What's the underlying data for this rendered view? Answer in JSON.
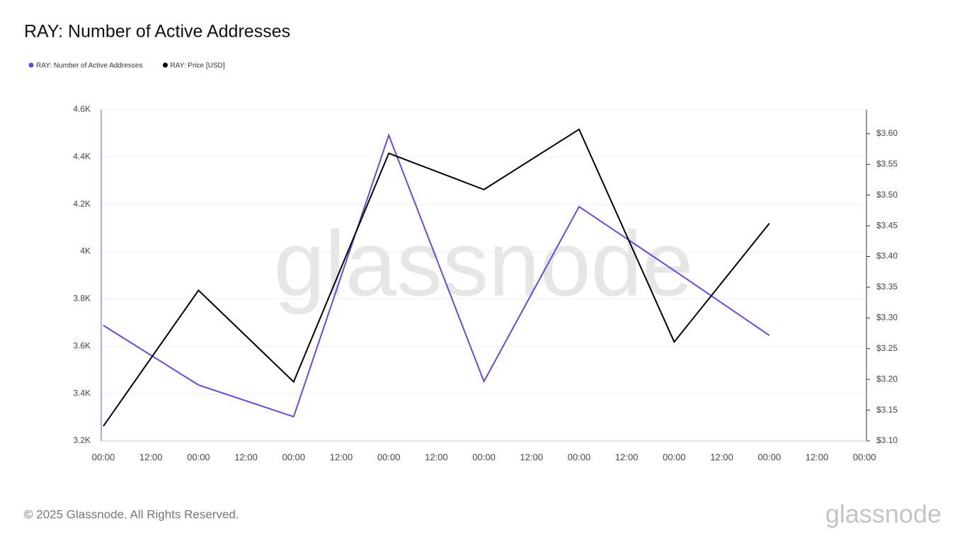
{
  "chart_data": {
    "type": "line",
    "title": "RAY: Number of Active Addresses",
    "xticks": [
      "00:00",
      "12:00",
      "00:00",
      "12:00",
      "00:00",
      "12:00",
      "00:00",
      "12:00",
      "00:00",
      "12:00",
      "00:00",
      "12:00",
      "00:00",
      "12:00",
      "00:00",
      "12:00",
      "00:00"
    ],
    "series": [
      {
        "name": "RAY: Number of Active Addresses",
        "color": "#6f45e0",
        "axis": "y",
        "values": [
          3688,
          3436,
          3302,
          4492,
          3451,
          4190,
          3920,
          3646
        ]
      },
      {
        "name": "RAY: Price [USD]",
        "color": "#000000",
        "axis": "y2",
        "values": [
          3.124,
          3.345,
          3.196,
          3.568,
          3.509,
          3.607,
          3.261,
          3.454
        ]
      }
    ],
    "ylim": [
      3200,
      4600
    ],
    "yticks": [
      {
        "value": 3200,
        "label": "3.2K"
      },
      {
        "value": 3400,
        "label": "3.4K"
      },
      {
        "value": 3600,
        "label": "3.6K"
      },
      {
        "value": 3800,
        "label": "3.8K"
      },
      {
        "value": 4000,
        "label": "4K"
      },
      {
        "value": 4200,
        "label": "4.2K"
      },
      {
        "value": 4400,
        "label": "4.4K"
      },
      {
        "value": 4600,
        "label": "4.6K"
      }
    ],
    "y2lim": [
      3.1,
      3.639
    ],
    "y2ticks": [
      {
        "value": 3.1,
        "label": "$3.10"
      },
      {
        "value": 3.15,
        "label": "$3.15"
      },
      {
        "value": 3.2,
        "label": "$3.20"
      },
      {
        "value": 3.25,
        "label": "$3.25"
      },
      {
        "value": 3.3,
        "label": "$3.30"
      },
      {
        "value": 3.35,
        "label": "$3.35"
      },
      {
        "value": 3.4,
        "label": "$3.40"
      },
      {
        "value": 3.45,
        "label": "$3.45"
      },
      {
        "value": 3.5,
        "label": "$3.50"
      },
      {
        "value": 3.55,
        "label": "$3.55"
      },
      {
        "value": 3.6,
        "label": "$3.60"
      }
    ],
    "grid": true,
    "watermark": "glassnode",
    "footer": "© 2025 Glassnode. All Rights Reserved.",
    "logo": "glassnode"
  }
}
